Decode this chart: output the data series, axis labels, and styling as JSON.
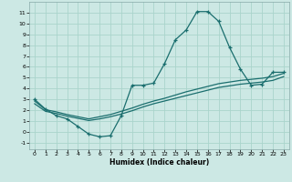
{
  "xlabel": "Humidex (Indice chaleur)",
  "background_color": "#cce8e4",
  "grid_color": "#aad4cc",
  "line_color": "#1a6e6e",
  "xlim": [
    -0.5,
    23.5
  ],
  "ylim": [
    -1.6,
    12.0
  ],
  "xticks": [
    0,
    1,
    2,
    3,
    4,
    5,
    6,
    7,
    8,
    9,
    10,
    11,
    12,
    13,
    14,
    15,
    16,
    17,
    18,
    19,
    20,
    21,
    22,
    23
  ],
  "yticks": [
    -1,
    0,
    1,
    2,
    3,
    4,
    5,
    6,
    7,
    8,
    9,
    10,
    11
  ],
  "curve1_x": [
    0,
    1,
    2,
    3,
    4,
    5,
    6,
    7,
    8,
    9,
    10,
    11,
    12,
    13,
    14,
    15,
    16,
    17,
    18,
    19,
    20,
    21,
    22,
    23
  ],
  "curve1_y": [
    3.0,
    2.1,
    1.5,
    1.2,
    0.5,
    -0.2,
    -0.45,
    -0.35,
    1.5,
    4.3,
    4.3,
    4.5,
    6.3,
    8.5,
    9.4,
    11.1,
    11.1,
    10.2,
    7.8,
    5.8,
    4.3,
    4.4,
    5.5,
    5.5
  ],
  "curve2_x": [
    0,
    1,
    2,
    3,
    4,
    5,
    6,
    7,
    8,
    9,
    10,
    11,
    12,
    13,
    14,
    15,
    16,
    17,
    18,
    19,
    20,
    21,
    22,
    23
  ],
  "curve2_y": [
    2.85,
    2.05,
    1.85,
    1.6,
    1.4,
    1.2,
    1.4,
    1.6,
    1.9,
    2.2,
    2.55,
    2.85,
    3.1,
    3.4,
    3.7,
    3.95,
    4.2,
    4.45,
    4.6,
    4.75,
    4.85,
    4.95,
    5.1,
    5.4
  ],
  "curve3_x": [
    0,
    1,
    2,
    3,
    4,
    5,
    6,
    7,
    8,
    9,
    10,
    11,
    12,
    13,
    14,
    15,
    16,
    17,
    18,
    19,
    20,
    21,
    22,
    23
  ],
  "curve3_y": [
    2.6,
    1.9,
    1.7,
    1.45,
    1.25,
    1.05,
    1.2,
    1.4,
    1.65,
    1.95,
    2.3,
    2.6,
    2.85,
    3.1,
    3.35,
    3.6,
    3.85,
    4.1,
    4.25,
    4.4,
    4.5,
    4.6,
    4.75,
    5.1
  ]
}
